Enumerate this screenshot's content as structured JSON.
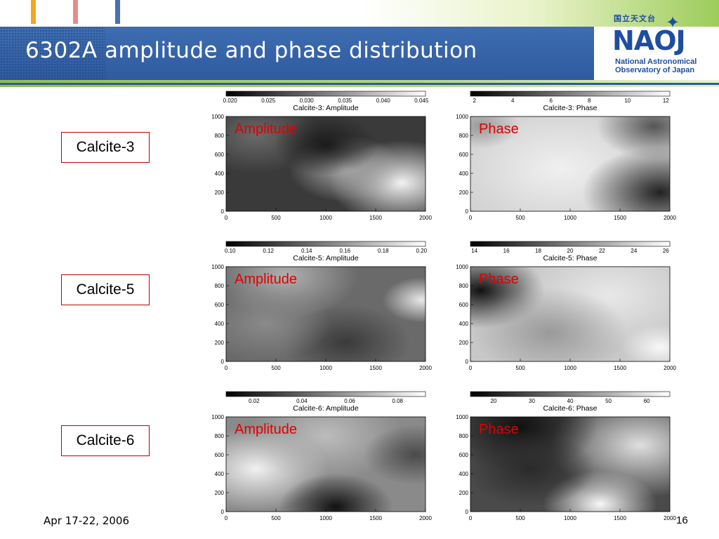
{
  "slide": {
    "title": "6302A amplitude and phase distribution",
    "footer_date": "Apr 17-22, 2006",
    "page_number": "16"
  },
  "logo": {
    "japanese": "国立天文台",
    "acronym": "NAOJ",
    "org_line1": "National Astronomical",
    "org_line2": "Observatory of Japan"
  },
  "colors": {
    "header_blue": "#2f5aa0",
    "accent_green": "#8fbf4a",
    "label_border": "#c00000",
    "overlay_text": "#e00000",
    "stripe_colors": [
      "#f5a623",
      "#e85a5a",
      "#4a6fb5"
    ]
  },
  "rows": [
    {
      "label": "Calcite-3",
      "amplitude": {
        "title": "Calcite-3: Amplitude",
        "overlay": "Amplitude",
        "colorbar_ticks": [
          "0.020",
          "0.025",
          "0.030",
          "0.035",
          "0.040",
          "0.045"
        ]
      },
      "phase": {
        "title": "Calcite-3: Phase",
        "overlay": "Phase",
        "colorbar_ticks": [
          "2",
          "4",
          "6",
          "8",
          "10",
          "12"
        ]
      }
    },
    {
      "label": "Calcite-5",
      "amplitude": {
        "title": "Calcite-5: Amplitude",
        "overlay": "Amplitude",
        "colorbar_ticks": [
          "0.10",
          "0.12",
          "0.14",
          "0.16",
          "0.18",
          "0.20"
        ]
      },
      "phase": {
        "title": "Calcite-5: Phase",
        "overlay": "Phase",
        "colorbar_ticks": [
          "14",
          "16",
          "18",
          "20",
          "22",
          "24",
          "26"
        ]
      }
    },
    {
      "label": "Calcite-6",
      "amplitude": {
        "title": "Calcite-6: Amplitude",
        "overlay": "Amplitude",
        "colorbar_ticks": [
          "0.02",
          "0.04",
          "0.06",
          "0.08"
        ]
      },
      "phase": {
        "title": "Calcite-6: Phase",
        "overlay": "Phase",
        "colorbar_ticks": [
          "20",
          "30",
          "40",
          "50",
          "60"
        ]
      }
    }
  ],
  "axes": {
    "x_ticks": [
      "0",
      "500",
      "1000",
      "1500",
      "2000"
    ],
    "y_ticks": [
      "0",
      "200",
      "400",
      "600",
      "800",
      "1000"
    ]
  }
}
